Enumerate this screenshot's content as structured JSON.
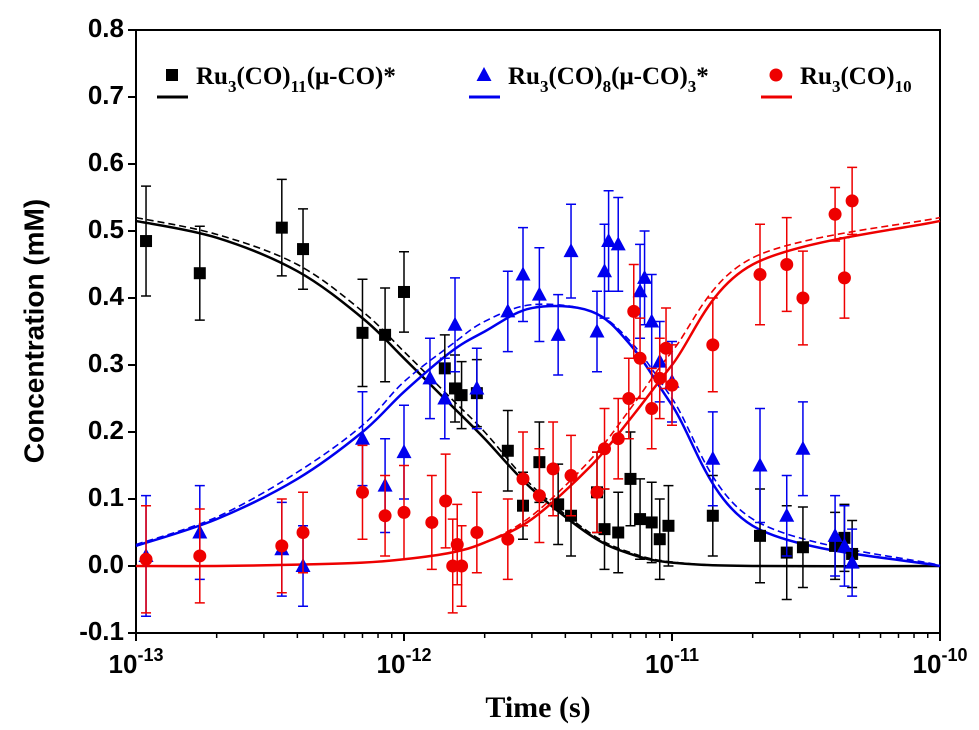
{
  "chart_data": {
    "type": "scatter",
    "xlabel": "Time (s)",
    "ylabel": "Concentration (mM)",
    "xscale": "log",
    "xlim": [
      1e-13,
      1e-10
    ],
    "xticks": [
      {
        "value": 1e-13,
        "label": "10",
        "exponent": "-13"
      },
      {
        "value": 1e-12,
        "label": "10",
        "exponent": "-12"
      },
      {
        "value": 1e-11,
        "label": "10",
        "exponent": "-11"
      },
      {
        "value": 1e-10,
        "label": "10",
        "exponent": "-10"
      }
    ],
    "ylim": [
      -0.1,
      0.8
    ],
    "yticks": [
      -0.1,
      {
        "value": 0,
        "label": "0.0"
      },
      0.1,
      0.2,
      0.3,
      0.4,
      0.5,
      0.6,
      0.7,
      0.8
    ],
    "legend": "top",
    "fit_x": [
      1e-13,
      2e-13,
      4e-13,
      7e-13,
      1e-12,
      1.5e-12,
      2e-12,
      3e-12,
      5e-12,
      7e-12,
      1e-11,
      2e-11,
      1e-10
    ],
    "series": [
      {
        "name_parts": [
          {
            "text": "Ru"
          },
          {
            "text": "3",
            "sub": true
          },
          {
            "text": "(CO)"
          },
          {
            "text": "11",
            "sub": true
          },
          {
            "text": "(μ-CO)*"
          }
        ],
        "color": "#000000",
        "marker": "square",
        "x": [
          1.09e-13,
          1.73e-13,
          3.5e-13,
          4.2e-13,
          7e-13,
          8.5e-13,
          1e-12,
          1.42e-12,
          1.55e-12,
          1.64e-12,
          1.87e-12,
          2.44e-12,
          2.78e-12,
          3.2e-12,
          3.76e-12,
          4.2e-12,
          5.25e-12,
          5.6e-12,
          6.3e-12,
          7e-12,
          7.6e-12,
          8.4e-12,
          9e-12,
          9.7e-12,
          1.42e-11,
          2.13e-11,
          2.68e-11,
          3.08e-11,
          4.06e-11,
          4.4e-11,
          4.7e-11
        ],
        "values": [
          0.485,
          0.437,
          0.505,
          0.473,
          0.348,
          0.345,
          0.409,
          0.295,
          0.265,
          0.255,
          0.258,
          0.172,
          0.09,
          0.155,
          0.092,
          0.075,
          0.11,
          0.055,
          0.05,
          0.13,
          0.07,
          0.065,
          0.04,
          0.06,
          0.075,
          0.045,
          0.02,
          0.028,
          0.03,
          0.042,
          0.018
        ],
        "errors": [
          0.082,
          0.07,
          0.072,
          0.06,
          0.08,
          0.07,
          0.06,
          0.05,
          0.05,
          0.05,
          0.05,
          0.06,
          0.05,
          0.06,
          0.06,
          0.06,
          0.06,
          0.06,
          0.06,
          0.07,
          0.06,
          0.06,
          0.06,
          0.06,
          0.06,
          0.07,
          0.07,
          0.06,
          0.05,
          0.05,
          0.05
        ],
        "fit_solid": [
          0.515,
          0.49,
          0.44,
          0.37,
          0.31,
          0.24,
          0.19,
          0.115,
          0.045,
          0.018,
          0.005,
          0,
          0
        ],
        "fit_dashed": [
          0.52,
          0.495,
          0.45,
          0.38,
          0.32,
          0.25,
          0.2,
          0.12,
          0.048,
          0.02,
          0.006,
          0,
          0
        ]
      },
      {
        "name_parts": [
          {
            "text": "Ru"
          },
          {
            "text": "3",
            "sub": true
          },
          {
            "text": "(CO)"
          },
          {
            "text": "8",
            "sub": true
          },
          {
            "text": "(μ-CO)"
          },
          {
            "text": "3",
            "sub": true
          },
          {
            "text": "*"
          }
        ],
        "color": "#0000ee",
        "marker": "triangle",
        "x": [
          1.09e-13,
          1.73e-13,
          3.5e-13,
          4.2e-13,
          7e-13,
          8.5e-13,
          1e-12,
          1.25e-12,
          1.42e-12,
          1.55e-12,
          1.87e-12,
          2.44e-12,
          2.78e-12,
          3.2e-12,
          3.76e-12,
          4.2e-12,
          5.25e-12,
          5.6e-12,
          5.8e-12,
          6.3e-12,
          7.6e-12,
          7.9e-12,
          8.4e-12,
          9e-12,
          1e-11,
          1.42e-11,
          2.13e-11,
          2.68e-11,
          3.08e-11,
          4.06e-11,
          4.4e-11,
          4.7e-11
        ],
        "values": [
          0.015,
          0.05,
          0.025,
          0.0,
          0.19,
          0.12,
          0.17,
          0.28,
          0.25,
          0.36,
          0.265,
          0.38,
          0.435,
          0.405,
          0.345,
          0.47,
          0.35,
          0.44,
          0.485,
          0.48,
          0.41,
          0.43,
          0.365,
          0.305,
          0.275,
          0.16,
          0.15,
          0.075,
          0.175,
          0.045,
          0.03,
          0.005
        ],
        "errors": [
          0.09,
          0.07,
          0.07,
          0.06,
          0.07,
          0.07,
          0.07,
          0.06,
          0.06,
          0.07,
          0.06,
          0.06,
          0.07,
          0.07,
          0.06,
          0.07,
          0.06,
          0.07,
          0.075,
          0.07,
          0.07,
          0.07,
          0.07,
          0.06,
          0.06,
          0.07,
          0.085,
          0.06,
          0.07,
          0.06,
          0.06,
          0.05
        ],
        "fit_solid": [
          0.03,
          0.07,
          0.13,
          0.2,
          0.26,
          0.32,
          0.35,
          0.385,
          0.38,
          0.33,
          0.24,
          0.06,
          0.0
        ],
        "fit_dashed": [
          0.032,
          0.073,
          0.14,
          0.21,
          0.275,
          0.33,
          0.365,
          0.39,
          0.38,
          0.335,
          0.25,
          0.07,
          0.001
        ]
      },
      {
        "name_parts": [
          {
            "text": "Ru"
          },
          {
            "text": "3",
            "sub": true
          },
          {
            "text": "(CO)"
          },
          {
            "text": "10",
            "sub": true
          }
        ],
        "color": "#ee0000",
        "marker": "circle",
        "x": [
          1.09e-13,
          1.73e-13,
          3.5e-13,
          4.2e-13,
          7e-13,
          8.5e-13,
          1e-12,
          1.27e-12,
          1.43e-12,
          1.52e-12,
          1.58e-12,
          1.64e-12,
          1.87e-12,
          2.44e-12,
          2.78e-12,
          3.2e-12,
          3.6e-12,
          4.2e-12,
          5.25e-12,
          5.6e-12,
          6.3e-12,
          6.9e-12,
          7.2e-12,
          7.6e-12,
          8.4e-12,
          9e-12,
          9.5e-12,
          1e-11,
          1.42e-11,
          2.13e-11,
          2.68e-11,
          3.08e-11,
          4.06e-11,
          4.4e-11,
          4.7e-11
        ],
        "values": [
          0.01,
          0.015,
          0.03,
          0.05,
          0.11,
          0.075,
          0.08,
          0.065,
          0.097,
          0.0,
          0.032,
          0.0,
          0.05,
          0.04,
          0.13,
          0.105,
          0.145,
          0.135,
          0.11,
          0.175,
          0.19,
          0.25,
          0.38,
          0.31,
          0.235,
          0.28,
          0.325,
          0.27,
          0.33,
          0.435,
          0.45,
          0.4,
          0.525,
          0.43,
          0.545
        ],
        "errors": [
          0.08,
          0.07,
          0.07,
          0.06,
          0.07,
          0.06,
          0.07,
          0.07,
          0.07,
          0.07,
          0.06,
          0.06,
          0.06,
          0.06,
          0.07,
          0.07,
          0.07,
          0.06,
          0.06,
          0.06,
          0.06,
          0.06,
          0.07,
          0.06,
          0.06,
          0.06,
          0.06,
          0.06,
          0.07,
          0.075,
          0.07,
          0.07,
          0.04,
          0.06,
          0.05
        ],
        "fit_solid": [
          0,
          0,
          0.002,
          0.005,
          0.01,
          0.02,
          0.035,
          0.07,
          0.15,
          0.22,
          0.3,
          0.45,
          0.515
        ],
        "fit_dashed": [
          0,
          0,
          0.002,
          0.005,
          0.01,
          0.02,
          0.035,
          0.075,
          0.16,
          0.235,
          0.32,
          0.46,
          0.52
        ]
      }
    ]
  }
}
